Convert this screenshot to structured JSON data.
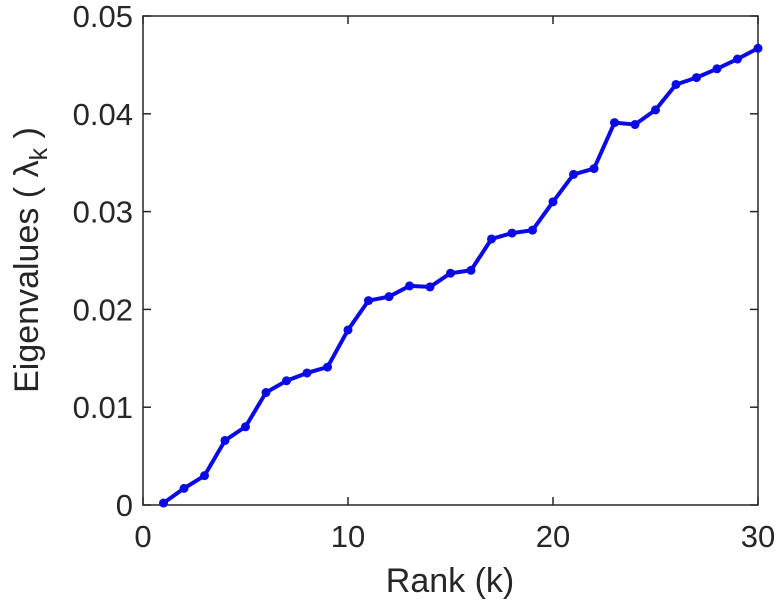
{
  "figure": {
    "background": "#ffffff"
  },
  "chart_data": {
    "type": "line",
    "title": "",
    "xlabel": "Rank (k)",
    "ylabel": "Eigenvalues ( λ_k )",
    "ylabel_parts": {
      "prefix": "Eigenvalues ( ",
      "symbol": "λ",
      "subscript": "k",
      "suffix": " )"
    },
    "x": [
      1,
      2,
      3,
      4,
      5,
      6,
      7,
      8,
      9,
      10,
      11,
      12,
      13,
      14,
      15,
      16,
      17,
      18,
      19,
      20,
      21,
      22,
      23,
      24,
      25,
      26,
      27,
      28,
      29,
      30
    ],
    "values": [
      0.0002,
      0.0017,
      0.003,
      0.0066,
      0.008,
      0.0115,
      0.0127,
      0.0135,
      0.0141,
      0.0179,
      0.0209,
      0.0213,
      0.0224,
      0.0223,
      0.0237,
      0.024,
      0.0272,
      0.0278,
      0.0281,
      0.031,
      0.0338,
      0.0344,
      0.0391,
      0.0389,
      0.0404,
      0.043,
      0.0437,
      0.0446,
      0.0456,
      0.0467
    ],
    "xlim": [
      0,
      30
    ],
    "ylim": [
      0,
      0.05
    ],
    "x_ticks": [
      0,
      10,
      20,
      30
    ],
    "x_tick_labels": [
      "0",
      "10",
      "20",
      "30"
    ],
    "y_ticks": [
      0,
      0.01,
      0.02,
      0.03,
      0.04,
      0.05
    ],
    "y_tick_labels": [
      "0",
      "0.01",
      "0.02",
      "0.03",
      "0.04",
      "0.05"
    ],
    "grid": false,
    "legend": false,
    "box": true,
    "line_color": "#0a0ae6",
    "axis_color": "#262626",
    "marker": "circle"
  }
}
